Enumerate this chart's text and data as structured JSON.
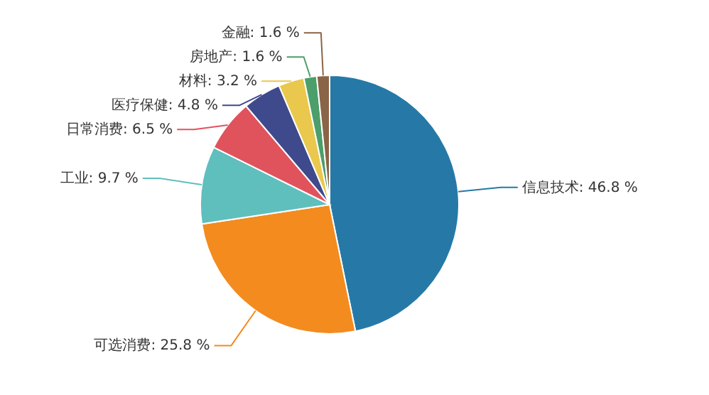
{
  "chart_data": {
    "type": "pie",
    "categories": [
      "信息技术",
      "可选消费",
      "工业",
      "日常消费",
      "医疗保健",
      "材料",
      "房地产",
      "金融"
    ],
    "values": [
      46.8,
      25.8,
      9.7,
      6.5,
      4.8,
      3.2,
      1.6,
      1.6
    ],
    "value_labels": [
      "46.8 %",
      "25.8 %",
      "9.7 %",
      "6.5 %",
      "4.8 %",
      "3.2 %",
      "1.6 %",
      "1.6 %"
    ],
    "colors": [
      "#2679a6",
      "#f38b1f",
      "#5fbfbd",
      "#e0535d",
      "#3f4a8c",
      "#e9c84d",
      "#4c9e6a",
      "#8a6446"
    ]
  }
}
